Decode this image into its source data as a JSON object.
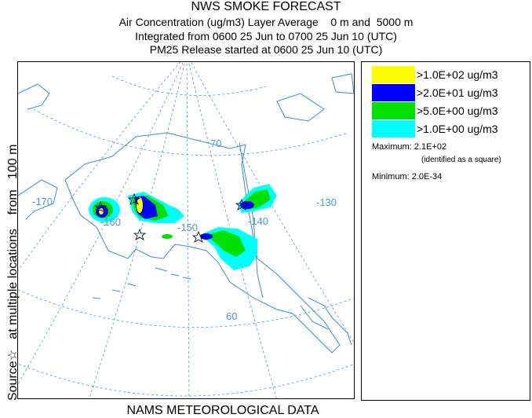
{
  "title": {
    "line1": "NWS SMOKE FORECAST",
    "line2": "Air Concentration (ug/m3) Layer Average    0 m and  5000 m",
    "line3": "Integrated from 0600 25 Jun to 0700 25 Jun 10 (UTC)",
    "line4": "PM25 Release started at 0600 25 Jun 10 (UTC)"
  },
  "side_label": "Source☆   at multiple locations    from   100 m",
  "footer": "NAMS METEOROLOGICAL DATA",
  "map": {
    "labels": {
      "lon_170": "-170",
      "lon_160": "-160",
      "lon_150": "-150",
      "lon_140": "-140",
      "lon_130": "-130",
      "lat_70": "70",
      "lat_60": "60"
    },
    "colors": {
      "land_outline": "#3a8fd0",
      "grid": "#4a9ad8",
      "level1": "#00ffff",
      "level2": "#00e000",
      "level3": "#0000ff",
      "level4": "#ffff00"
    }
  },
  "legend": {
    "items": [
      {
        "label": ">1.0E+02 ug/m3",
        "color": "#ffff00"
      },
      {
        "label": ">2.0E+01 ug/m3",
        "color": "#0000ff"
      },
      {
        "label": ">5.0E+00 ug/m3",
        "color": "#00e000"
      },
      {
        "label": ">1.0E+00 ug/m3",
        "color": "#00ffff"
      }
    ],
    "maximum": "Maximum: 2.1E+02",
    "maximum_note": "(identified as a square)",
    "minimum": "Minimum: 2.0E-34"
  }
}
